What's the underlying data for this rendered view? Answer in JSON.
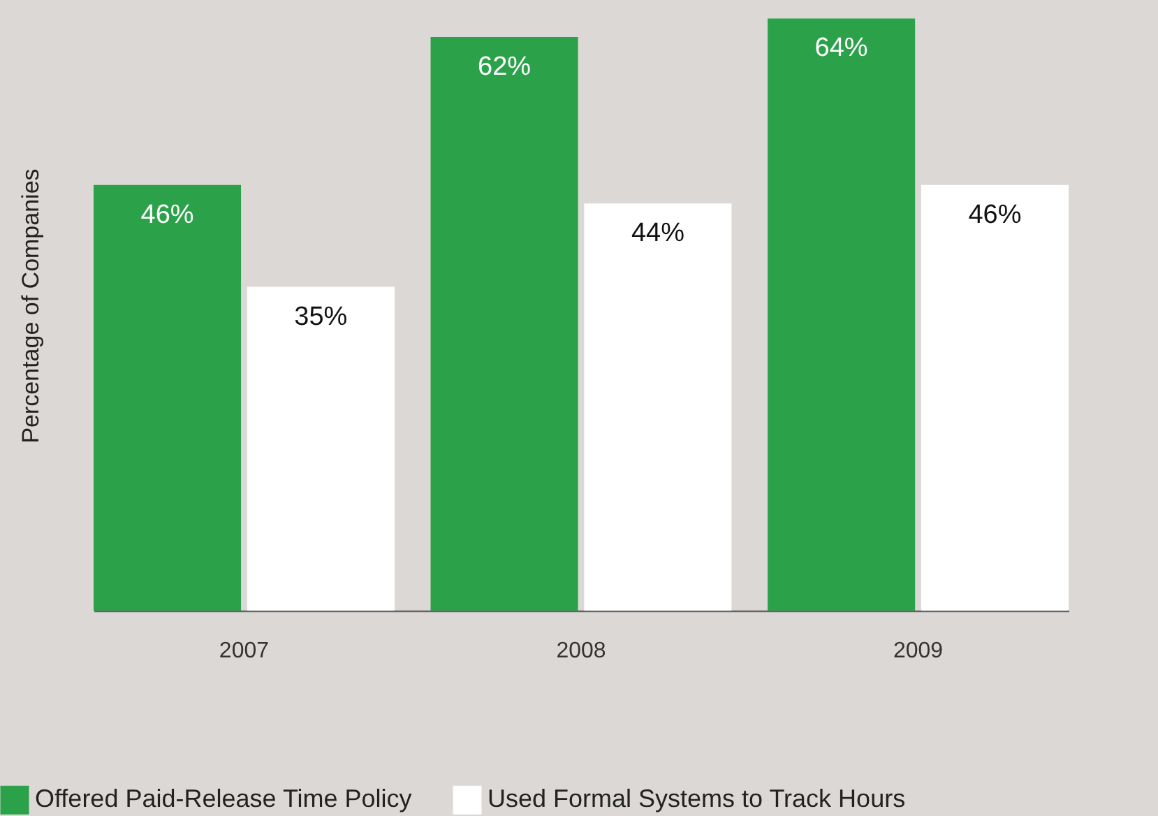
{
  "chart_data": {
    "type": "bar",
    "ylabel": "Percentage of Companies",
    "categories": [
      "2007",
      "2008",
      "2009"
    ],
    "series": [
      {
        "name": "Offered Paid-Release Time Policy",
        "color": "#2ba24a",
        "values": [
          46,
          62,
          64
        ],
        "value_labels": [
          "46%",
          "62%",
          "64%"
        ]
      },
      {
        "name": "Used Formal Systems to Track Hours",
        "color": "#ffffff",
        "values": [
          35,
          44,
          46
        ],
        "value_labels": [
          "35%",
          "44%",
          "46%"
        ]
      }
    ],
    "ylim": [
      0,
      66
    ],
    "legend": "bottom left",
    "grid": false
  }
}
